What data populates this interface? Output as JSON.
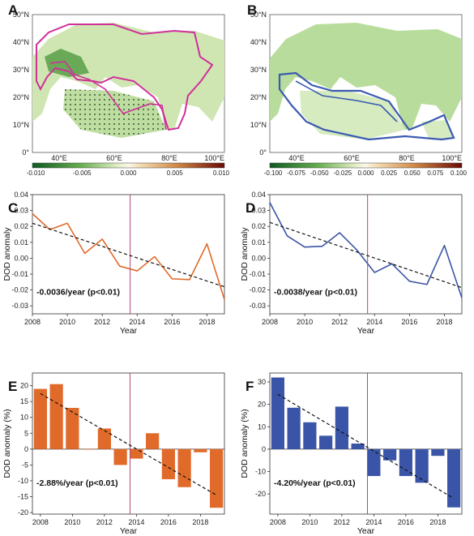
{
  "panels": {
    "A": {
      "label": "A"
    },
    "B": {
      "label": "B"
    },
    "C": {
      "label": "C"
    },
    "D": {
      "label": "D"
    },
    "E": {
      "label": "E"
    },
    "F": {
      "label": "F"
    }
  },
  "maps": {
    "lat_ticks": [
      "0°",
      "10°N",
      "20°N",
      "30°N",
      "40°N",
      "50°N"
    ],
    "lon_ticks": [
      "40°E",
      "60°E",
      "80°E",
      "100°E"
    ],
    "map_a": {
      "colorbar_ticks": [
        "-0.010",
        "-0.005",
        "0.000",
        "0.005",
        "0.010"
      ],
      "outline_color": "#d0309a"
    },
    "map_b": {
      "colorbar_ticks": [
        "-0.100",
        "-0.075",
        "-0.050",
        "-0.025",
        "0.000",
        "0.025",
        "0.050",
        "0.075",
        "0.100"
      ],
      "outline_color": "#3b5bb0"
    }
  },
  "colors": {
    "orange": "#e06a2a",
    "blue": "#3a55a8",
    "divider": "#b0467a",
    "trend": "#111111"
  },
  "chart_data": [
    {
      "panel": "C",
      "type": "line",
      "x": [
        2008,
        2009,
        2010,
        2011,
        2012,
        2013,
        2014,
        2015,
        2016,
        2017,
        2018,
        2019
      ],
      "series": [
        {
          "values": [
            0.028,
            0.018,
            0.022,
            0.003,
            0.012,
            -0.005,
            -0.008,
            0.001,
            -0.013,
            -0.0135,
            0.009,
            -0.026
          ]
        }
      ],
      "trend": [
        [
          2008,
          0.022
        ],
        [
          2019,
          -0.018
        ]
      ],
      "divider_x": 2013.6,
      "xlim": [
        2008,
        2019
      ],
      "ylim": [
        -0.035,
        0.04
      ],
      "xticks": [
        2008,
        2010,
        2012,
        2014,
        2016,
        2018
      ],
      "yticks": [
        "-0.03",
        "-0.02",
        "-0.01",
        "0.00",
        "0.01",
        "0.02",
        "0.03",
        "0.04"
      ],
      "yticks_values": [
        -0.03,
        -0.02,
        -0.01,
        0.0,
        0.01,
        0.02,
        0.03,
        0.04
      ],
      "xlabel": "Year",
      "ylabel": "DOD anomaly",
      "annotation": "-0.0036/year (p<0.01)"
    },
    {
      "panel": "D",
      "type": "line",
      "x": [
        2008,
        2009,
        2010,
        2011,
        2012,
        2013,
        2014,
        2015,
        2016,
        2017,
        2018,
        2019
      ],
      "series": [
        {
          "values": [
            0.035,
            0.014,
            0.007,
            0.0075,
            0.016,
            0.005,
            -0.009,
            -0.0035,
            -0.0145,
            -0.0165,
            0.008,
            -0.025
          ]
        }
      ],
      "trend": [
        [
          2008,
          0.0225
        ],
        [
          2019,
          -0.0185
        ]
      ],
      "divider_x": 2013.6,
      "xlim": [
        2008,
        2019
      ],
      "ylim": [
        -0.035,
        0.04
      ],
      "xticks": [
        2008,
        2010,
        2012,
        2014,
        2016,
        2018
      ],
      "yticks": [
        "-0.03",
        "-0.02",
        "-0.01",
        "0.00",
        "0.01",
        "0.02",
        "0.03",
        "0.04"
      ],
      "yticks_values": [
        -0.03,
        -0.02,
        -0.01,
        0.0,
        0.01,
        0.02,
        0.03,
        0.04
      ],
      "xlabel": "Year",
      "ylabel": "DOD anomaly",
      "annotation": "-0.0038/year (p<0.01)"
    },
    {
      "panel": "E",
      "type": "bar",
      "x": [
        2008,
        2009,
        2010,
        2011,
        2012,
        2013,
        2014,
        2015,
        2016,
        2017,
        2018,
        2019
      ],
      "series": [
        {
          "values": [
            19,
            20.5,
            13,
            0,
            6.5,
            -5,
            -3,
            5,
            -9.5,
            -12,
            -1,
            -18.5
          ]
        }
      ],
      "trend": [
        [
          2008,
          17.5
        ],
        [
          2019,
          -14.5
        ]
      ],
      "divider_x": 2013.6,
      "xlim": [
        2007.5,
        2019.5
      ],
      "ylim": [
        -20.5,
        24
      ],
      "xticks": [
        2008,
        2010,
        2012,
        2014,
        2016,
        2018
      ],
      "yticks": [
        "-20",
        "-15",
        "-10",
        "-5",
        "0",
        "5",
        "10",
        "15",
        "20"
      ],
      "yticks_values": [
        -20,
        -15,
        -10,
        -5,
        0,
        5,
        10,
        15,
        20
      ],
      "xlabel": "Year",
      "ylabel": "DOD anomaly (%)",
      "annotation": "-2.88%/year (p<0.01)"
    },
    {
      "panel": "F",
      "type": "bar",
      "x": [
        2008,
        2009,
        2010,
        2011,
        2012,
        2013,
        2014,
        2015,
        2016,
        2017,
        2018,
        2019
      ],
      "series": [
        {
          "values": [
            32,
            18.5,
            12,
            6,
            19,
            2.5,
            -12,
            -5,
            -12,
            -15,
            -3,
            -26
          ]
        }
      ],
      "trend": [
        [
          2008,
          24.5
        ],
        [
          2019,
          -22
        ]
      ],
      "divider_x": 2013.6,
      "xlim": [
        2007.5,
        2019.5
      ],
      "ylim": [
        -29,
        34
      ],
      "xticks": [
        2008,
        2010,
        2012,
        2014,
        2016,
        2018
      ],
      "yticks": [
        "-20",
        "-10",
        "0",
        "10",
        "20",
        "30"
      ],
      "yticks_values": [
        -20,
        -10,
        0,
        10,
        20,
        30
      ],
      "xlabel": "Year",
      "ylabel": "DOD anomaly (%)",
      "annotation": "-4.20%/year (p<0.01)"
    }
  ]
}
